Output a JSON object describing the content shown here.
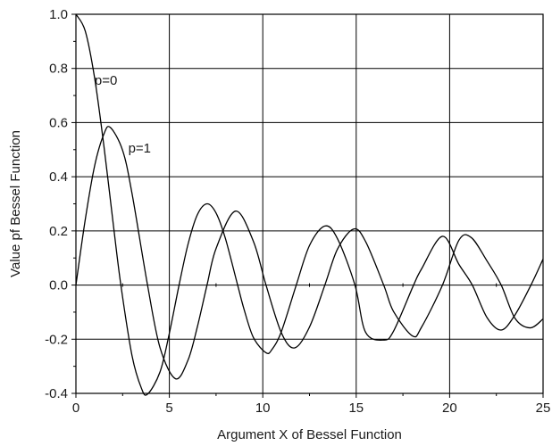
{
  "chart_data": {
    "type": "line",
    "xlabel": "Argument X of Bessel Function",
    "ylabel": "Value pf Bessel Function",
    "xlim": [
      0,
      25
    ],
    "ylim": [
      -0.4,
      1.0
    ],
    "xticks": [
      0,
      5,
      10,
      15,
      20,
      25
    ],
    "xtick_labels": [
      "0",
      "5",
      "10",
      "15",
      "20",
      "25"
    ],
    "yticks": [
      -0.4,
      -0.2,
      0.0,
      0.2,
      0.4,
      0.6,
      0.8,
      1.0
    ],
    "ytick_labels": [
      "-0.4",
      "-0.2",
      "0.0",
      "0.2",
      "0.4",
      "0.6",
      "0.8",
      "1.0"
    ],
    "grid": true,
    "line_color": "#000000",
    "annotations": [
      {
        "text": "p=0",
        "x": 1.0,
        "y": 0.74
      },
      {
        "text": "p=1",
        "x": 2.8,
        "y": 0.49
      }
    ],
    "series": [
      {
        "name": "p=0",
        "x": [
          0,
          0.5,
          1,
          1.5,
          2,
          2.405,
          3,
          3.5,
          3.832,
          4.5,
          5,
          5.52,
          6,
          6.5,
          7.016,
          7.5,
          8,
          8.654,
          9,
          9.5,
          10.173,
          10.5,
          11,
          11.792,
          12.5,
          13.323,
          14,
          14.931,
          15.5,
          16.471,
          17,
          18.071,
          18.5,
          19.616,
          20.5,
          21.212,
          22,
          22.76,
          23.5,
          24.352,
          25
        ],
        "y": [
          1.0,
          0.938,
          0.765,
          0.512,
          0.224,
          0.0,
          -0.26,
          -0.38,
          -0.403,
          -0.321,
          -0.178,
          0.0,
          0.151,
          0.26,
          0.3,
          0.266,
          0.172,
          0.0,
          -0.09,
          -0.194,
          -0.25,
          -0.237,
          -0.171,
          0.0,
          0.146,
          0.218,
          0.171,
          0.0,
          -0.174,
          -0.203,
          -0.17,
          0.0,
          0.06,
          0.18,
          0.076,
          0.0,
          -0.12,
          -0.166,
          -0.11,
          0.0,
          0.096
        ]
      },
      {
        "name": "p=1",
        "x": [
          0,
          0.5,
          1,
          1.5,
          1.841,
          2.5,
          3,
          3.832,
          4.5,
          5.331,
          6,
          6.5,
          7.016,
          7.5,
          8.536,
          9.5,
          10.173,
          11,
          11.706,
          12.5,
          13.323,
          14,
          14.864,
          15.5,
          16.471,
          17,
          18.016,
          18.5,
          19.616,
          20.5,
          21.164,
          22,
          22.76,
          23.5,
          24.311,
          25
        ],
        "y": [
          0.0,
          0.242,
          0.44,
          0.558,
          0.582,
          0.497,
          0.339,
          0.0,
          -0.231,
          -0.346,
          -0.277,
          -0.154,
          0.0,
          0.135,
          0.273,
          0.161,
          0.0,
          -0.177,
          -0.232,
          -0.155,
          0.0,
          0.133,
          0.207,
          0.161,
          0.0,
          -0.098,
          -0.188,
          -0.155,
          0.0,
          0.166,
          0.175,
          0.089,
          0.0,
          -0.123,
          -0.158,
          -0.125
        ]
      }
    ]
  }
}
